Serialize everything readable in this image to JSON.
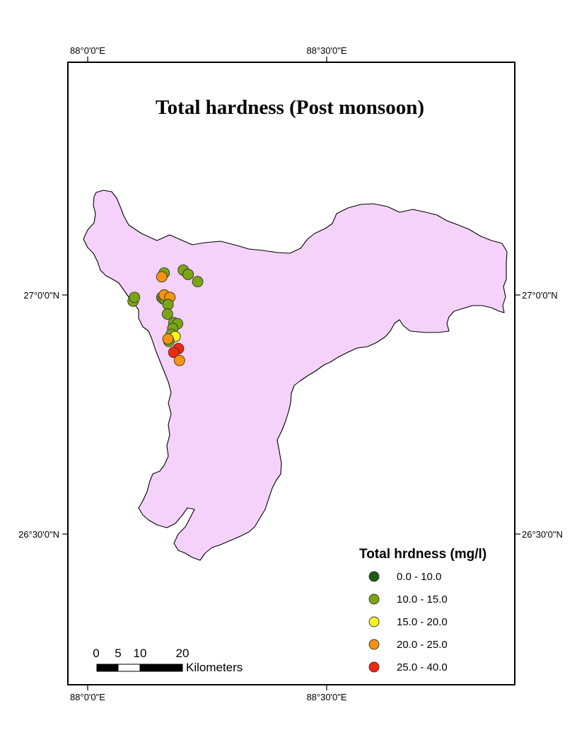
{
  "title": "Total hardness (Post monsoon)",
  "graticule": {
    "lon_labels": [
      "88°0'0\"E",
      "88°30'0\"E"
    ],
    "lat_labels": [
      "27°0'0\"N",
      "26°30'0\"N"
    ]
  },
  "region_fill": "#f5d2fa",
  "legend": {
    "title": "Total hrdness (mg/l)",
    "classes": [
      {
        "label": "0.0 - 10.0",
        "color": "#1f5c0f"
      },
      {
        "label": "10.0 - 15.0",
        "color": "#7ba614"
      },
      {
        "label": "15.0 - 20.0",
        "color": "#f5f51e"
      },
      {
        "label": "20.0 - 25.0",
        "color": "#f59410"
      },
      {
        "label": "25.0 - 40.0",
        "color": "#f0280f"
      }
    ]
  },
  "scale_bar": {
    "ticks": [
      "0",
      "5",
      "10",
      "20"
    ],
    "unit": "Kilometers"
  },
  "samples": [
    {
      "lon": 88.16,
      "lat": 27.046,
      "cls": 1
    },
    {
      "lon": 88.2,
      "lat": 27.052,
      "cls": 1
    },
    {
      "lon": 88.21,
      "lat": 27.043,
      "cls": 3
    },
    {
      "lon": 88.21,
      "lat": 27.043,
      "cls": 1
    },
    {
      "lon": 88.23,
      "lat": 27.028,
      "cls": 1
    },
    {
      "lon": 88.155,
      "lat": 27.038,
      "cls": 3
    },
    {
      "lon": 88.095,
      "lat": 26.987,
      "cls": 1
    },
    {
      "lon": 88.098,
      "lat": 26.995,
      "cls": 1
    },
    {
      "lon": 88.155,
      "lat": 26.995,
      "cls": 1
    },
    {
      "lon": 88.158,
      "lat": 26.992,
      "cls": 1
    },
    {
      "lon": 88.162,
      "lat": 26.99,
      "cls": 1
    },
    {
      "lon": 88.16,
      "lat": 27.0,
      "cls": 3
    },
    {
      "lon": 88.172,
      "lat": 26.995,
      "cls": 3
    },
    {
      "lon": 88.168,
      "lat": 26.98,
      "cls": 1
    },
    {
      "lon": 88.167,
      "lat": 26.96,
      "cls": 1
    },
    {
      "lon": 88.18,
      "lat": 26.942,
      "cls": 1
    },
    {
      "lon": 88.188,
      "lat": 26.94,
      "cls": 1
    },
    {
      "lon": 88.178,
      "lat": 26.93,
      "cls": 1
    },
    {
      "lon": 88.175,
      "lat": 26.918,
      "cls": 1
    },
    {
      "lon": 88.183,
      "lat": 26.913,
      "cls": 2
    },
    {
      "lon": 88.17,
      "lat": 26.903,
      "cls": 1
    },
    {
      "lon": 88.168,
      "lat": 26.908,
      "cls": 3
    },
    {
      "lon": 88.19,
      "lat": 26.888,
      "cls": 4
    },
    {
      "lon": 88.18,
      "lat": 26.88,
      "cls": 4
    },
    {
      "lon": 88.192,
      "lat": 26.863,
      "cls": 3
    }
  ]
}
